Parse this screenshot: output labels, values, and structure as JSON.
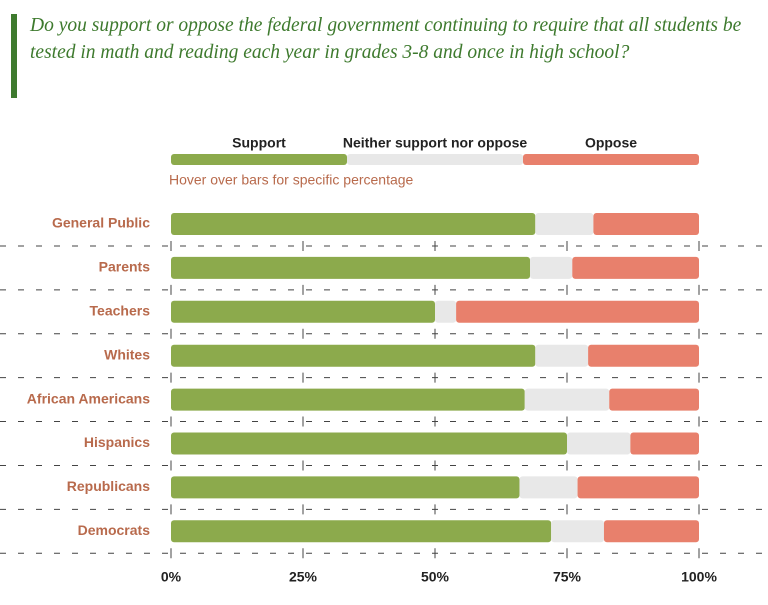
{
  "chart_data": {
    "type": "stacked-bar",
    "orientation": "horizontal",
    "title": "Do you support or oppose the federal government continuing to require that all students be tested in math and reading each year in grades 3-8 and once in high school?",
    "annotation": "Hover over bars for specific percentage",
    "categories": [
      "General Public",
      "Parents",
      "Teachers",
      "Whites",
      "African Americans",
      "Hispanics",
      "Republicans",
      "Democrats"
    ],
    "series": [
      {
        "name": "Support",
        "color": "#8caa4c",
        "values": [
          69,
          68,
          50,
          69,
          67,
          75,
          66,
          72
        ]
      },
      {
        "name": "Neither support nor oppose",
        "color": "#e8e8e8",
        "values": [
          11,
          8,
          4,
          10,
          16,
          12,
          11,
          10
        ]
      },
      {
        "name": "Oppose",
        "color": "#e8806c",
        "values": [
          20,
          24,
          46,
          21,
          17,
          13,
          23,
          18
        ]
      }
    ],
    "xlim": [
      0,
      100
    ],
    "xticks": [
      {
        "value": 0,
        "label": "0%"
      },
      {
        "value": 25,
        "label": "25%"
      },
      {
        "value": 50,
        "label": "50%"
      },
      {
        "value": 75,
        "label": "75%"
      },
      {
        "value": 100,
        "label": "100%"
      }
    ],
    "legend": "top"
  }
}
